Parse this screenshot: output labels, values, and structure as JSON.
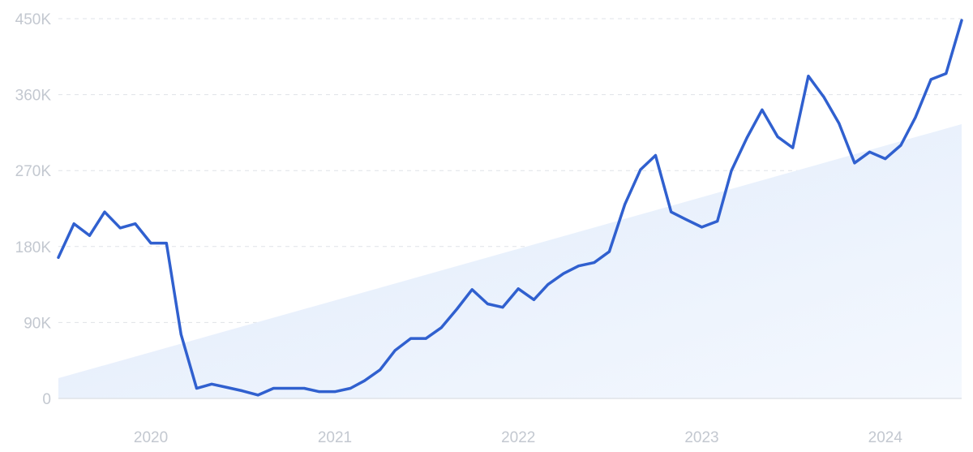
{
  "colors": {
    "line": "#3060cf",
    "trend_fill_start": "#dfeafb",
    "trend_fill_end": "#f4f8fe",
    "grid": "#dfe3e8",
    "tick_text": "#c3c8d0"
  },
  "chart_data": {
    "type": "line",
    "title": "",
    "xlabel": "",
    "ylabel": "",
    "grid": true,
    "legend": "none",
    "ylim": [
      0,
      450000
    ],
    "xlim": [
      "2019-07-01",
      "2024-06-01"
    ],
    "y_ticks": [
      {
        "value": 0,
        "label": "0"
      },
      {
        "value": 90000,
        "label": "90K"
      },
      {
        "value": 180000,
        "label": "180K"
      },
      {
        "value": 270000,
        "label": "270K"
      },
      {
        "value": 360000,
        "label": "360K"
      },
      {
        "value": 450000,
        "label": "450K"
      }
    ],
    "x_ticks": [
      {
        "value": "2020-01-01",
        "label": "2020"
      },
      {
        "value": "2021-01-01",
        "label": "2021"
      },
      {
        "value": "2022-01-01",
        "label": "2022"
      },
      {
        "value": "2023-01-01",
        "label": "2023"
      },
      {
        "value": "2024-01-01",
        "label": "2024"
      }
    ],
    "trend": {
      "type": "area",
      "x": [
        "2019-07-01",
        "2024-06-01"
      ],
      "y": [
        24000,
        325000
      ]
    },
    "series": [
      {
        "x": [
          "2019-07-01",
          "2019-08-01",
          "2019-09-01",
          "2019-10-01",
          "2019-11-01",
          "2019-12-01",
          "2020-01-01",
          "2020-02-01",
          "2020-03-01",
          "2020-04-01",
          "2020-05-01",
          "2020-06-01",
          "2020-07-01",
          "2020-08-01",
          "2020-09-01",
          "2020-10-01",
          "2020-11-01",
          "2020-12-01",
          "2021-01-01",
          "2021-02-01",
          "2021-03-01",
          "2021-04-01",
          "2021-05-01",
          "2021-06-01",
          "2021-07-01",
          "2021-08-01",
          "2021-09-01",
          "2021-10-01",
          "2021-11-01",
          "2021-12-01",
          "2022-01-01",
          "2022-02-01",
          "2022-03-01",
          "2022-04-01",
          "2022-05-01",
          "2022-06-01",
          "2022-07-01",
          "2022-08-01",
          "2022-09-01",
          "2022-10-01",
          "2022-11-01",
          "2022-12-01",
          "2023-01-01",
          "2023-02-01",
          "2023-03-01",
          "2023-04-01",
          "2023-05-01",
          "2023-06-01",
          "2023-07-01",
          "2023-08-01",
          "2023-09-01",
          "2023-10-01",
          "2023-11-01",
          "2023-12-01",
          "2024-01-01",
          "2024-02-01",
          "2024-03-01",
          "2024-04-01",
          "2024-05-01",
          "2024-06-01"
        ],
        "y": [
          167000,
          207000,
          193000,
          221000,
          202000,
          207000,
          184000,
          184000,
          76000,
          12000,
          17000,
          13000,
          9000,
          4000,
          12000,
          12000,
          12000,
          8000,
          8000,
          12000,
          21000,
          34000,
          57000,
          71000,
          71000,
          84000,
          106000,
          129000,
          112000,
          108000,
          130000,
          117000,
          135000,
          148000,
          157000,
          161000,
          174000,
          230000,
          271000,
          288000,
          221000,
          212000,
          203000,
          210000,
          270000,
          309000,
          342000,
          310000,
          297000,
          382000,
          357000,
          326000,
          279000,
          292000,
          284000,
          300000,
          333000,
          378000,
          385000,
          448000
        ]
      }
    ]
  }
}
